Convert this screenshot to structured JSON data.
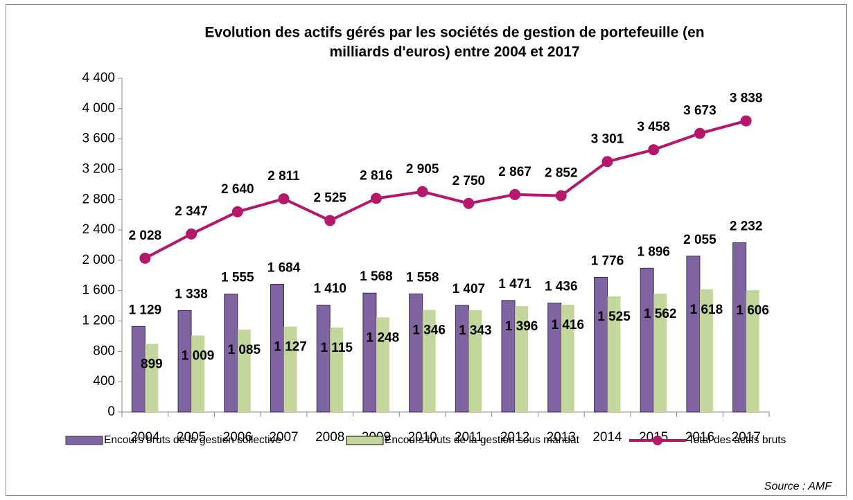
{
  "chart_data": {
    "type": "bar_line",
    "title": [
      "Evolution des actifs gérés par les sociétés de gestion de portefeuille (en",
      "milliards d'euros) entre 2004 et 2017"
    ],
    "source": "Source : AMF",
    "categories": [
      "2004",
      "2005",
      "2006",
      "2007",
      "2008",
      "2009",
      "2010",
      "2011",
      "2012",
      "2013",
      "2014",
      "2015",
      "2016",
      "2017"
    ],
    "series": [
      {
        "name": "Encours bruts de la gestion collective",
        "type": "bar",
        "color": "#8064a2",
        "values": [
          1129,
          1338,
          1555,
          1684,
          1410,
          1568,
          1558,
          1407,
          1471,
          1436,
          1776,
          1896,
          2055,
          2232
        ],
        "value_labels": [
          "1 129",
          "1 338",
          "1 555",
          "1 684",
          "1 410",
          "1 568",
          "1 558",
          "1 407",
          "1 471",
          "1 436",
          "1 776",
          "1 896",
          "2 055",
          "2 232"
        ]
      },
      {
        "name": "Encours bruts de la gestion sous mandat",
        "type": "bar",
        "color": "#c3d69b",
        "values": [
          899,
          1009,
          1085,
          1127,
          1115,
          1248,
          1346,
          1343,
          1396,
          1416,
          1525,
          1562,
          1618,
          1606
        ],
        "value_labels": [
          "899",
          "1 009",
          "1 085",
          "1 127",
          "1 115",
          "1 248",
          "1 346",
          "1 343",
          "1 396",
          "1 416",
          "1 525",
          "1 562",
          "1 618",
          "1 606"
        ]
      },
      {
        "name": "Total des actifs bruts",
        "type": "line",
        "color": "#b5176b",
        "values": [
          2028,
          2347,
          2640,
          2811,
          2525,
          2816,
          2905,
          2750,
          2867,
          2852,
          3301,
          3458,
          3673,
          3838
        ],
        "value_labels": [
          "2 028",
          "2 347",
          "2 640",
          "2 811",
          "2 525",
          "2 816",
          "2 905",
          "2 750",
          "2 867",
          "2 852",
          "3 301",
          "3 458",
          "3 673",
          "3 838"
        ]
      }
    ],
    "ylim": [
      0,
      4400
    ],
    "yticks": [
      0,
      400,
      800,
      {
        "value": 1200,
        "label": "1 200"
      },
      {
        "value": 1600,
        "label": "1 600"
      },
      {
        "value": 2000,
        "label": "2 000"
      },
      {
        "value": 2400,
        "label": "2 400"
      },
      {
        "value": 2800,
        "label": "2 800"
      },
      {
        "value": 3200,
        "label": "3 200"
      },
      {
        "value": 3600,
        "label": "3 600"
      },
      {
        "value": 4000,
        "label": "4 000"
      },
      {
        "value": 4400,
        "label": "4 400"
      }
    ],
    "grid": false,
    "legend": "bottom"
  }
}
